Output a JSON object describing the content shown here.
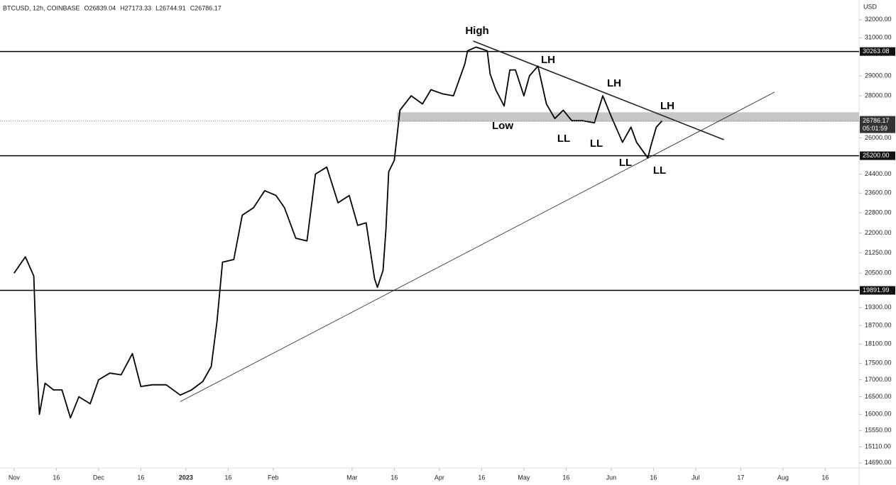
{
  "chart_data": {
    "type": "line",
    "title": "BTCUSD, 12h, COINBASE",
    "ohlc": [
      "O26839.04",
      "H27173.33",
      "L26744.91",
      "C26786.17"
    ],
    "unit": "USD",
    "log_scale": true,
    "color": "#000000",
    "x": [
      "2022-11-01",
      "2022-11-05",
      "2022-11-08",
      "2022-11-09",
      "2022-11-10",
      "2022-11-12",
      "2022-11-15",
      "2022-11-18",
      "2022-11-21",
      "2022-11-24",
      "2022-11-28",
      "2022-12-01",
      "2022-12-05",
      "2022-12-09",
      "2022-12-13",
      "2022-12-16",
      "2022-12-20",
      "2022-12-25",
      "2022-12-30",
      "2023-01-03",
      "2023-01-07",
      "2023-01-10",
      "2023-01-12",
      "2023-01-14",
      "2023-01-18",
      "2023-01-21",
      "2023-01-25",
      "2023-01-29",
      "2023-02-02",
      "2023-02-05",
      "2023-02-09",
      "2023-02-13",
      "2023-02-16",
      "2023-02-20",
      "2023-02-24",
      "2023-02-28",
      "2023-03-03",
      "2023-03-06",
      "2023-03-09",
      "2023-03-10",
      "2023-03-12",
      "2023-03-13",
      "2023-03-14",
      "2023-03-16",
      "2023-03-18",
      "2023-03-22",
      "2023-03-26",
      "2023-03-29",
      "2023-04-02",
      "2023-04-06",
      "2023-04-10",
      "2023-04-11",
      "2023-04-14",
      "2023-04-18",
      "2023-04-19",
      "2023-04-21",
      "2023-04-24",
      "2023-04-26",
      "2023-04-28",
      "2023-05-01",
      "2023-05-03",
      "2023-05-06",
      "2023-05-09",
      "2023-05-12",
      "2023-05-15",
      "2023-05-18",
      "2023-05-22",
      "2023-05-26",
      "2023-05-29",
      "2023-06-01",
      "2023-06-05",
      "2023-06-08",
      "2023-06-10",
      "2023-06-14",
      "2023-06-15",
      "2023-06-17",
      "2023-06-19"
    ],
    "values": [
      20500,
      21100,
      20400,
      17600,
      16000,
      16900,
      16700,
      16700,
      15900,
      16500,
      16300,
      17000,
      17200,
      17150,
      17800,
      16800,
      16850,
      16850,
      16550,
      16700,
      16950,
      17400,
      18800,
      20900,
      21000,
      22700,
      23000,
      23700,
      23500,
      23000,
      21800,
      21700,
      24400,
      24700,
      23200,
      23500,
      22300,
      22400,
      20300,
      20000,
      20600,
      22100,
      24500,
      25000,
      27300,
      28000,
      27600,
      28300,
      28100,
      28000,
      29600,
      30300,
      30500,
      30300,
      29100,
      28300,
      27500,
      29300,
      29300,
      28000,
      29000,
      29500,
      27600,
      26900,
      27300,
      26800,
      26800,
      26700,
      28000,
      27000,
      25800,
      26500,
      25800,
      25100,
      25600,
      26500,
      26786.17
    ],
    "xlim": [
      "2022-10-27",
      "2023-08-28"
    ],
    "xticks": [
      {
        "value": "2022-11-01",
        "label": "Nov"
      },
      {
        "value": "2022-11-16",
        "label": "16"
      },
      {
        "value": "2022-12-01",
        "label": "Dec"
      },
      {
        "value": "2022-12-16",
        "label": "16"
      },
      {
        "value": "2023-01-01",
        "label": "2023"
      },
      {
        "value": "2023-01-16",
        "label": "16"
      },
      {
        "value": "2023-02-01",
        "label": "Feb"
      },
      {
        "value": "2023-03-01",
        "label": "Mar"
      },
      {
        "value": "2023-03-16",
        "label": "16"
      },
      {
        "value": "2023-04-01",
        "label": "Apr"
      },
      {
        "value": "2023-04-16",
        "label": "16"
      },
      {
        "value": "2023-05-01",
        "label": "May"
      },
      {
        "value": "2023-05-16",
        "label": "16"
      },
      {
        "value": "2023-06-01",
        "label": "Jun"
      },
      {
        "value": "2023-06-16",
        "label": "16"
      },
      {
        "value": "2023-07-01",
        "label": "Jul"
      },
      {
        "value": "2023-07-17",
        "label": "17"
      },
      {
        "value": "2023-08-01",
        "label": "Aug"
      },
      {
        "value": "2023-08-16",
        "label": "16"
      }
    ],
    "ylim": [
      14560,
      33130
    ],
    "yticks": [
      {
        "value": 32000,
        "label": "32000.00"
      },
      {
        "value": 31000,
        "label": "31000.00"
      },
      {
        "value": 29000,
        "label": "29000.00"
      },
      {
        "value": 28000,
        "label": "28000.00"
      },
      {
        "value": 26000,
        "label": "26000.00"
      },
      {
        "value": 24400,
        "label": "24400.00"
      },
      {
        "value": 23600,
        "label": "23600.00"
      },
      {
        "value": 22800,
        "label": "22800.00"
      },
      {
        "value": 22000,
        "label": "22000.00"
      },
      {
        "value": 21250,
        "label": "21250.00"
      },
      {
        "value": 20500,
        "label": "20500.00"
      },
      {
        "value": 19300,
        "label": "19300.00"
      },
      {
        "value": 18700,
        "label": "18700.00"
      },
      {
        "value": 18100,
        "label": "18100.00"
      },
      {
        "value": 17500,
        "label": "17500.00"
      },
      {
        "value": 17000,
        "label": "17000.00"
      },
      {
        "value": 16500,
        "label": "16500.00"
      },
      {
        "value": 16000,
        "label": "16000.00"
      },
      {
        "value": 15550,
        "label": "15550.00"
      },
      {
        "value": 15110,
        "label": "15110.00"
      },
      {
        "value": 14690,
        "label": "14690.00"
      }
    ],
    "levels": [
      30263.08,
      {
        "value": 25200,
        "label": "25200.00"
      },
      19891.99
    ],
    "zone": {
      "from": "2023-03-17",
      "y": [
        26750,
        27200
      ]
    },
    "last_price": 26786.17,
    "countdown": "05:01:59",
    "trendlines": [
      {
        "x": [
          "2023-04-13",
          "2023-07-11"
        ],
        "y": [
          30825,
          25920
        ]
      },
      {
        "x": [
          "2022-12-30",
          "2023-07-29"
        ],
        "y": [
          16360,
          28180
        ]
      }
    ],
    "annotations": [
      "High",
      "LH",
      "LH",
      "LH",
      "Low",
      "LL",
      "LL",
      "LL",
      "LL"
    ]
  }
}
